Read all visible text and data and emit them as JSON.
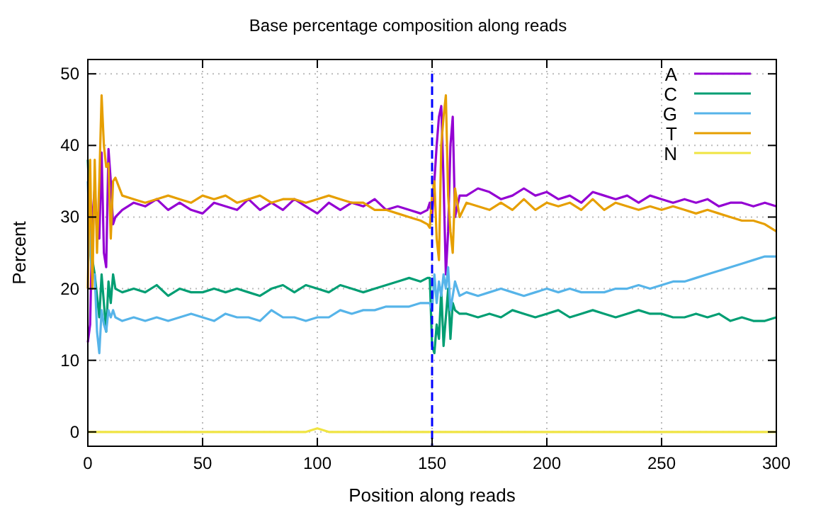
{
  "chart_data": {
    "type": "line",
    "title": "Base percentage composition along reads",
    "xlabel": "Position along reads",
    "ylabel": "Percent",
    "x": [
      0,
      1,
      2,
      3,
      4,
      5,
      6,
      7,
      8,
      9,
      10,
      11,
      12,
      15,
      20,
      25,
      30,
      35,
      40,
      45,
      50,
      55,
      60,
      65,
      70,
      75,
      80,
      85,
      90,
      95,
      100,
      105,
      110,
      115,
      120,
      125,
      130,
      135,
      140,
      145,
      148,
      149,
      150,
      151,
      152,
      153,
      154,
      155,
      156,
      157,
      158,
      159,
      160,
      162,
      165,
      170,
      175,
      180,
      185,
      190,
      195,
      200,
      205,
      210,
      215,
      220,
      225,
      230,
      235,
      240,
      245,
      250,
      255,
      260,
      265,
      270,
      275,
      280,
      285,
      290,
      295,
      300
    ],
    "series": [
      {
        "name": "A",
        "color": "#9400d3",
        "values": [
          12.5,
          15,
          30,
          34,
          28,
          27,
          39,
          25,
          23,
          39.5,
          35,
          29,
          30,
          31,
          32,
          31.5,
          32.5,
          31,
          32,
          31,
          30.5,
          32,
          31.5,
          31,
          32.5,
          31,
          32,
          31,
          32.5,
          31.5,
          30.5,
          32,
          31,
          32,
          31.5,
          32.5,
          31,
          31.5,
          31,
          30.5,
          31,
          32,
          30,
          35,
          40,
          44,
          45.5,
          35,
          22,
          28,
          40,
          44,
          30,
          33,
          33,
          34,
          33.5,
          32.5,
          33,
          34,
          33,
          33.5,
          32.5,
          33,
          32,
          33.5,
          33,
          32.5,
          33,
          32,
          33,
          32.5,
          32,
          32.5,
          32,
          32.5,
          31.5,
          32,
          32,
          31.5,
          32,
          31.5
        ]
      },
      {
        "name": "C",
        "color": "#009e73",
        "values": [
          38,
          30,
          24,
          22,
          19,
          16,
          22,
          18,
          14,
          21,
          18,
          22,
          20,
          19.5,
          20,
          19.5,
          20.5,
          19,
          20,
          19.5,
          19.5,
          20,
          19.5,
          20,
          19.5,
          19,
          20,
          20.5,
          19.5,
          20.5,
          20,
          19.5,
          20.5,
          20,
          19.5,
          20,
          20.5,
          21,
          21.5,
          21,
          21.5,
          21.5,
          12,
          11,
          15,
          13,
          20,
          12,
          16,
          20,
          13,
          18,
          17,
          16.5,
          16.5,
          16,
          16.5,
          16,
          17,
          16.5,
          16,
          16.5,
          17,
          16,
          16.5,
          17,
          16.5,
          16,
          16.5,
          17,
          16.5,
          16.5,
          16,
          16,
          16.5,
          16,
          16.5,
          15.5,
          16,
          15.5,
          15.5,
          16
        ]
      },
      {
        "name": "G",
        "color": "#56b4e9",
        "values": [
          35,
          25,
          22,
          22,
          14,
          11,
          17,
          15,
          14,
          17,
          16,
          17,
          16,
          15.5,
          16,
          15.5,
          16,
          15.5,
          16,
          16.5,
          16,
          15.5,
          16.5,
          16,
          16,
          15.5,
          17,
          16,
          16,
          15.5,
          16,
          16,
          17,
          16.5,
          17,
          17,
          17.5,
          17.5,
          17.5,
          18,
          18,
          18,
          17,
          22,
          18,
          21,
          19,
          22,
          20,
          23,
          17,
          19,
          21,
          19,
          19.5,
          19,
          19.5,
          20,
          19.5,
          19,
          19.5,
          20,
          19.5,
          20,
          19.5,
          19.5,
          19.5,
          20,
          20,
          20.5,
          20,
          20.5,
          21,
          21,
          21.5,
          22,
          22.5,
          23,
          23.5,
          24,
          24.5,
          24.5
        ]
      },
      {
        "name": "T",
        "color": "#e69f00",
        "values": [
          20,
          38,
          20,
          38,
          25,
          35,
          47,
          40,
          37,
          37.5,
          27,
          35,
          35.5,
          33,
          32.5,
          32,
          32.5,
          33,
          32.5,
          32,
          33,
          32.5,
          33,
          32,
          32.5,
          33,
          32,
          32.5,
          32.5,
          32,
          32.5,
          33,
          32.5,
          32,
          32,
          31,
          31,
          30.5,
          30,
          29.5,
          29,
          28.5,
          33,
          35,
          27,
          24,
          40,
          44,
          47,
          33,
          28,
          25,
          34,
          30,
          32,
          31.5,
          31,
          32,
          31,
          32.5,
          31,
          32,
          31.5,
          32,
          31,
          32.5,
          31,
          32,
          31.5,
          31,
          31.5,
          31,
          31.5,
          31,
          30.5,
          31,
          30.5,
          30,
          29.5,
          29.5,
          29,
          28
        ]
      },
      {
        "name": "N",
        "color": "#f0e442",
        "values": [
          0,
          0,
          0,
          0,
          0,
          0,
          0,
          0,
          0,
          0,
          0,
          0,
          0,
          0,
          0,
          0,
          0,
          0,
          0,
          0,
          0,
          0,
          0,
          0,
          0,
          0,
          0,
          0,
          0,
          0,
          0.5,
          0,
          0,
          0,
          0,
          0,
          0,
          0,
          0,
          0,
          0,
          0,
          0,
          0,
          0,
          0,
          0,
          0,
          0,
          0,
          0,
          0,
          0,
          0,
          0,
          0,
          0,
          0,
          0,
          0,
          0,
          0,
          0,
          0,
          0,
          0,
          0,
          0,
          0,
          0,
          0,
          0,
          0,
          0,
          0,
          0,
          0,
          0,
          0,
          0,
          0,
          0
        ]
      }
    ],
    "xlim": [
      0,
      300
    ],
    "ylim": [
      -2,
      52
    ],
    "xticks": [
      0,
      50,
      100,
      150,
      200,
      250,
      300
    ],
    "yticks": [
      0,
      10,
      20,
      30,
      40,
      50
    ],
    "ref_lines": [
      {
        "axis": "x",
        "value": 150,
        "color": "#0000ff",
        "line_style": "dashed"
      }
    ],
    "grid": true,
    "legend": "top right",
    "line_style": "solid",
    "marker": "none"
  }
}
